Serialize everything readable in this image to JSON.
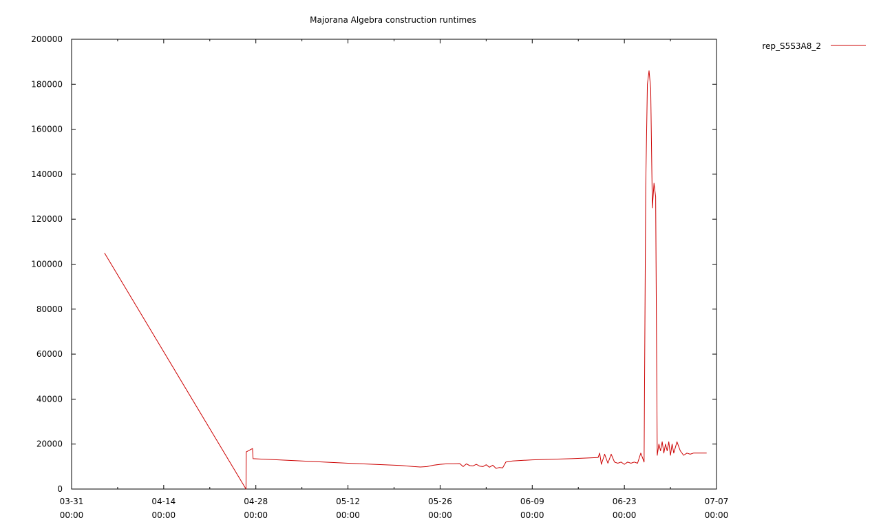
{
  "chart_data": {
    "type": "line",
    "title": "Majorana Algebra construction runtimes",
    "xlabel": "",
    "ylabel": "",
    "x_ticks": [
      {
        "date": "03-31",
        "time": "00:00"
      },
      {
        "date": "04-14",
        "time": "00:00"
      },
      {
        "date": "04-28",
        "time": "00:00"
      },
      {
        "date": "05-12",
        "time": "00:00"
      },
      {
        "date": "05-26",
        "time": "00:00"
      },
      {
        "date": "06-09",
        "time": "00:00"
      },
      {
        "date": "06-23",
        "time": "00:00"
      },
      {
        "date": "07-07",
        "time": "00:00"
      }
    ],
    "y_ticks": [
      "0",
      "20000",
      "40000",
      "60000",
      "80000",
      "100000",
      "120000",
      "140000",
      "160000",
      "180000",
      "200000"
    ],
    "ylim": [
      0,
      200000
    ],
    "xlim": [
      "03-31 00:00",
      "07-07 00:00"
    ],
    "grid": false,
    "legend_position": "right-outside-top",
    "series": [
      {
        "name": "rep_S5S3A8_2",
        "color": "#cc0000",
        "x": [
          "04-05 00:00",
          "04-26 12:00",
          "04-26 13:00",
          "04-27 12:00",
          "04-27 14:00",
          "05-05 00:00",
          "05-12 00:00",
          "05-20 00:00",
          "05-22 00:00",
          "05-23 00:00",
          "05-24 00:00",
          "05-25 00:00",
          "05-26 00:00",
          "05-27 00:00",
          "05-28 00:00",
          "05-29 00:00",
          "05-29 12:00",
          "05-30 00:00",
          "05-30 12:00",
          "05-31 00:00",
          "05-31 12:00",
          "06-01 00:00",
          "06-01 12:00",
          "06-02 00:00",
          "06-02 12:00",
          "06-03 00:00",
          "06-03 12:00",
          "06-04 00:00",
          "06-04 12:00",
          "06-05 00:00",
          "06-06 00:00",
          "06-09 00:00",
          "06-15 00:00",
          "06-19 00:00",
          "06-19 06:00",
          "06-19 12:00",
          "06-20 00:00",
          "06-20 12:00",
          "06-21 00:00",
          "06-21 12:00",
          "06-22 00:00",
          "06-22 12:00",
          "06-23 00:00",
          "06-23 12:00",
          "06-24 00:00",
          "06-24 12:00",
          "06-25 00:00",
          "06-25 12:00",
          "06-26 00:00",
          "06-26 06:00",
          "06-26 12:00",
          "06-26 18:00",
          "06-27 00:00",
          "06-27 06:00",
          "06-27 12:00",
          "06-27 18:00",
          "06-28 00:00",
          "06-28 06:00",
          "06-28 12:00",
          "06-28 18:00",
          "06-29 00:00",
          "06-29 06:00",
          "06-29 12:00",
          "06-29 18:00",
          "06-30 00:00",
          "06-30 06:00",
          "06-30 12:00",
          "07-01 00:00",
          "07-01 12:00",
          "07-02 00:00",
          "07-02 12:00",
          "07-03 00:00",
          "07-03 12:00",
          "07-04 00:00",
          "07-04 12:00",
          "07-05 00:00",
          "07-05 12:00"
        ],
        "y": [
          105000,
          0,
          16500,
          18000,
          13500,
          12500,
          11500,
          10500,
          10000,
          9800,
          10000,
          10600,
          11000,
          11200,
          11200,
          11300,
          10000,
          11200,
          10400,
          10300,
          11000,
          10200,
          10000,
          10800,
          9700,
          10600,
          9200,
          9600,
          9400,
          12000,
          12500,
          13000,
          13500,
          14000,
          16000,
          11000,
          15500,
          11500,
          15500,
          12000,
          11500,
          12000,
          11000,
          12000,
          11500,
          12000,
          11500,
          16000,
          12000,
          135000,
          180000,
          186000,
          178000,
          125000,
          136000,
          130000,
          15000,
          20000,
          17000,
          21000,
          16000,
          20000,
          17000,
          21000,
          15000,
          20000,
          16000,
          21000,
          17000,
          15000,
          16000,
          15500,
          16000,
          16000,
          16000,
          16000,
          16000
        ]
      }
    ]
  }
}
